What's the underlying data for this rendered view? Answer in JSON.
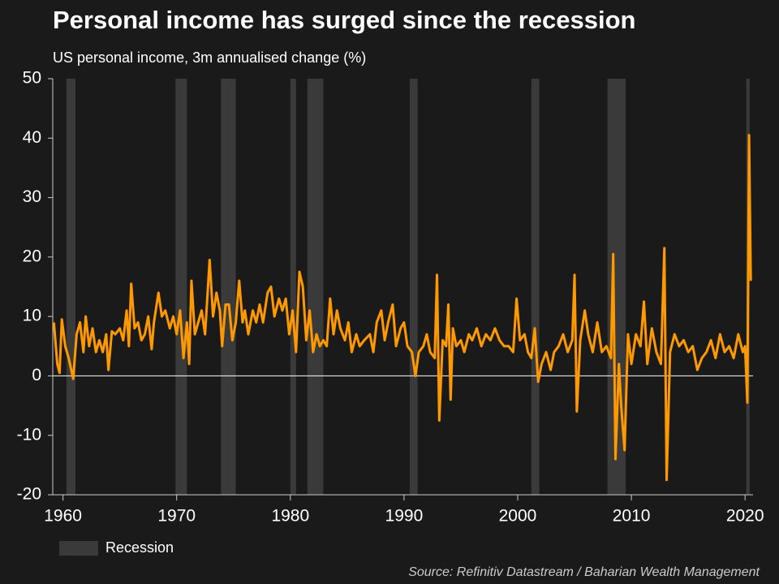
{
  "chart_data": {
    "type": "line",
    "title": "Personal income has surged since the recession",
    "subtitle": "US personal income, 3m annualised change (%)",
    "source": "Source: Refinitiv Datastream / Baharian Wealth Management",
    "recession_label": "Recession",
    "recession_color": "#3a3a3a",
    "recessions": [
      [
        1960.3,
        1961.1
      ],
      [
        1969.9,
        1970.9
      ],
      [
        1973.9,
        1975.2
      ],
      [
        1980.0,
        1980.5
      ],
      [
        1981.5,
        1982.9
      ],
      [
        1990.5,
        1991.2
      ],
      [
        2001.2,
        2001.9
      ],
      [
        2007.9,
        2009.5
      ],
      [
        2020.1,
        2020.4
      ]
    ],
    "xlim": [
      1959.1,
      2020.7
    ],
    "xticks": [
      1960,
      1970,
      1980,
      1990,
      2000,
      2010,
      2020
    ],
    "ylim": [
      -20,
      50
    ],
    "yticks": [
      -20,
      -10,
      0,
      10,
      20,
      30,
      40,
      50
    ],
    "x": [
      1959.2,
      1959.5,
      1959.7,
      1959.9,
      1960.2,
      1960.5,
      1960.9,
      1961.2,
      1961.5,
      1961.8,
      1962.0,
      1962.3,
      1962.6,
      1962.9,
      1963.2,
      1963.5,
      1963.8,
      1964.0,
      1964.3,
      1964.6,
      1965.0,
      1965.3,
      1965.6,
      1965.8,
      1966.0,
      1966.3,
      1966.6,
      1966.9,
      1967.2,
      1967.5,
      1967.8,
      1968.0,
      1968.4,
      1968.7,
      1969.0,
      1969.4,
      1969.7,
      1970.0,
      1970.3,
      1970.6,
      1970.9,
      1971.1,
      1971.3,
      1971.6,
      1971.9,
      1972.2,
      1972.5,
      1972.9,
      1973.2,
      1973.5,
      1973.8,
      1974.0,
      1974.3,
      1974.6,
      1974.9,
      1975.2,
      1975.5,
      1975.8,
      1976.0,
      1976.3,
      1976.7,
      1977.0,
      1977.3,
      1977.6,
      1978.0,
      1978.3,
      1978.6,
      1979.0,
      1979.3,
      1979.6,
      1979.9,
      1980.2,
      1980.5,
      1980.8,
      1981.1,
      1981.4,
      1981.7,
      1982.0,
      1982.3,
      1982.6,
      1982.9,
      1983.2,
      1983.5,
      1983.8,
      1984.1,
      1984.4,
      1984.8,
      1985.1,
      1985.4,
      1985.8,
      1986.1,
      1986.5,
      1987.0,
      1987.3,
      1987.6,
      1988.0,
      1988.3,
      1988.6,
      1989.0,
      1989.3,
      1989.7,
      1990.0,
      1990.3,
      1990.7,
      1991.0,
      1991.3,
      1991.7,
      1992.0,
      1992.3,
      1992.7,
      1992.9,
      1993.1,
      1993.4,
      1993.7,
      1993.9,
      1994.1,
      1994.3,
      1994.6,
      1995.0,
      1995.3,
      1995.7,
      1996.0,
      1996.4,
      1996.8,
      1997.2,
      1997.6,
      1998.0,
      1998.4,
      1998.8,
      1999.2,
      1999.6,
      1999.9,
      2000.2,
      2000.6,
      2000.9,
      2001.2,
      2001.5,
      2001.8,
      2002.1,
      2002.5,
      2002.9,
      2003.2,
      2003.6,
      2004.0,
      2004.4,
      2004.8,
      2005.0,
      2005.2,
      2005.5,
      2005.9,
      2006.2,
      2006.6,
      2007.0,
      2007.4,
      2007.8,
      2008.2,
      2008.4,
      2008.6,
      2008.9,
      2009.1,
      2009.4,
      2009.7,
      2010.0,
      2010.4,
      2010.8,
      2011.1,
      2011.4,
      2011.8,
      2012.2,
      2012.6,
      2012.9,
      2013.1,
      2013.4,
      2013.8,
      2014.2,
      2014.6,
      2015.0,
      2015.4,
      2015.8,
      2016.2,
      2016.6,
      2017.0,
      2017.4,
      2017.8,
      2018.2,
      2018.6,
      2019.0,
      2019.4,
      2019.8,
      2020.0,
      2020.2,
      2020.35,
      2020.5
    ],
    "series": [
      {
        "name": "US personal income, 3m annualised change",
        "color": "#ff9900",
        "values": [
          9,
          2,
          0.5,
          9.5,
          5,
          3,
          -0.5,
          7,
          9,
          4,
          10,
          5,
          8,
          4,
          6,
          4,
          7,
          1,
          7.5,
          7,
          8,
          6,
          11,
          5,
          15.5,
          8,
          9,
          6,
          7,
          10,
          4.5,
          9,
          14,
          10,
          11,
          8,
          10,
          7,
          11,
          3,
          9,
          2,
          16,
          7,
          9,
          11,
          7,
          19.5,
          10,
          14,
          11,
          5,
          12,
          12,
          6,
          9,
          16,
          9,
          11,
          7,
          11,
          9,
          12,
          9,
          14,
          15,
          10,
          13,
          11,
          13,
          7,
          11,
          4,
          17.5,
          15,
          6,
          11,
          4,
          7,
          5,
          6,
          5,
          13,
          7,
          11,
          8,
          6,
          9,
          4,
          7,
          5,
          6,
          7,
          4,
          9,
          11,
          6,
          9,
          12,
          5,
          8,
          9,
          5,
          4,
          0,
          4,
          5,
          7,
          4,
          3,
          17,
          -7.5,
          6,
          5,
          12,
          -4,
          8,
          5,
          6,
          4,
          7,
          6,
          8,
          5,
          7,
          6,
          8,
          6,
          5,
          5,
          4,
          13,
          6,
          7,
          4,
          3,
          8,
          -1,
          2,
          4,
          1,
          4,
          5,
          7,
          4,
          6,
          17,
          -6,
          6,
          11,
          7,
          4,
          9,
          4,
          5,
          3,
          20.5,
          -14,
          2,
          -5,
          -12.5,
          7,
          2,
          7,
          5,
          12.5,
          2,
          8,
          4,
          2,
          21.5,
          -17.5,
          4,
          7,
          5,
          6,
          4,
          5,
          1,
          3,
          4,
          6,
          3,
          7,
          4,
          5,
          3,
          7,
          4,
          5,
          -4.5,
          40.5,
          16
        ]
      }
    ]
  }
}
